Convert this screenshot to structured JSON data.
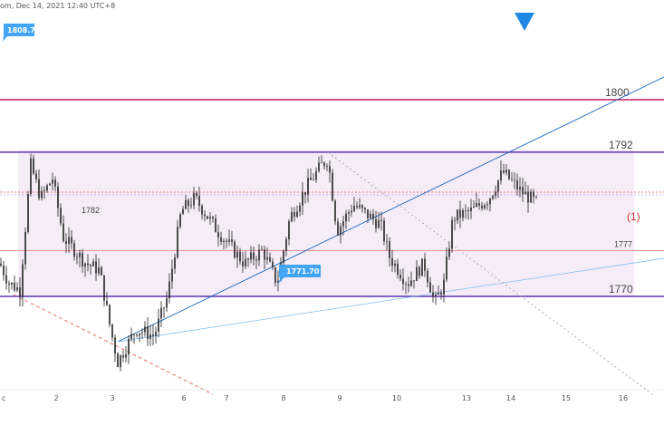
{
  "header": {
    "text": "om, Dec 14, 2021 12:40 UTC+8"
  },
  "chart_data": {
    "type": "candlestick",
    "x_ticks": [
      "c",
      "2",
      "3",
      "6",
      "7",
      "8",
      "9",
      "10",
      "13",
      "14",
      "15",
      "16"
    ],
    "y_range": [
      1755,
      1815
    ],
    "levels": [
      {
        "value": 1800,
        "label": "1800",
        "color": "#c2185b"
      },
      {
        "value": 1792,
        "label": "1792",
        "color": "#5e35b1"
      },
      {
        "value": 1777,
        "label": "1777",
        "color": "#e57373"
      },
      {
        "value": 1770,
        "label": "1770",
        "color": "#5e35b1"
      }
    ],
    "range_box": {
      "top": 1792,
      "bottom": 1770,
      "color": "#f3e5f5"
    },
    "callouts": [
      {
        "label": "1808.72",
        "value": 1808.72
      },
      {
        "label": "1771.70",
        "value": 1771.7
      }
    ],
    "annotations": [
      {
        "text": "1782",
        "value": 1782
      },
      {
        "text": "(1)",
        "color": "#d32f2f"
      }
    ],
    "colors": {
      "candle": "#222222",
      "trendline": "#1565c0",
      "projection": "#e57373",
      "marker": "#1e88e5"
    }
  }
}
